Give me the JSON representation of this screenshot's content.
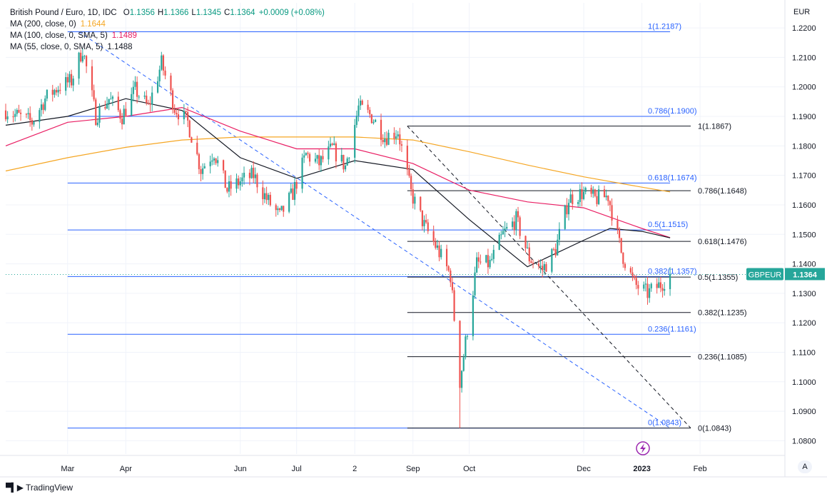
{
  "legend": {
    "title": "British Pound / Euro, 1D, IDC",
    "ohlc": [
      {
        "k": "O",
        "v": "1.1356"
      },
      {
        "k": "H",
        "v": "1.1366"
      },
      {
        "k": "L",
        "v": "1.1345"
      },
      {
        "k": "C",
        "v": "1.1364"
      }
    ],
    "change": "+0.0009 (+0.08%)",
    "change_color": "#089981",
    "ma_lines": [
      {
        "label": "MA (200, close, 0)",
        "value": "1.1644",
        "color": "#f5a623"
      },
      {
        "label": "MA (100, close, 0, SMA, 5)",
        "value": "1.1489",
        "color": "#e91e63"
      },
      {
        "label": "MA (55, close, 0, SMA, 5)",
        "value": "1.1488",
        "color": "#131722"
      }
    ]
  },
  "axis_unit": "EUR",
  "auto_label": "A",
  "footer_brand": "TradingView",
  "chart_data": {
    "type": "candlestick",
    "symbol": "GBPEUR",
    "last_price": "1.1364",
    "last_price_value": 1.1364,
    "up_color": "#26a69a",
    "down_color": "#ef5350",
    "ylim": [
      1.0755,
      1.2285
    ],
    "y_ticks": [
      "1.2200",
      "1.2100",
      "1.2000",
      "1.1900",
      "1.1800",
      "1.1700",
      "1.1600",
      "1.1500",
      "1.1400",
      "1.1300",
      "1.1200",
      "1.1100",
      "1.1000",
      "1.0900",
      "1.0800"
    ],
    "x_ticks": [
      {
        "label": "Mar",
        "date": "2022-03-01"
      },
      {
        "label": "Apr",
        "date": "2022-04-01"
      },
      {
        "label": "Jun",
        "date": "2022-06-01"
      },
      {
        "label": "Jul",
        "date": "2022-07-01"
      },
      {
        "label": "2",
        "date": "2022-08-01"
      },
      {
        "label": "Sep",
        "date": "2022-09-01"
      },
      {
        "label": "Oct",
        "date": "2022-10-01"
      },
      {
        "label": "Dec",
        "date": "2022-12-01"
      },
      {
        "label": "2023",
        "date": "2023-01-01"
      },
      {
        "label": "Feb",
        "date": "2023-02-01"
      }
    ],
    "price_path": [
      [
        "2022-01-27",
        1.192
      ],
      [
        "2022-02-03",
        1.19
      ],
      [
        "2022-02-10",
        1.188
      ],
      [
        "2022-02-17",
        1.196
      ],
      [
        "2022-02-24",
        1.2
      ],
      [
        "2022-03-03",
        1.202
      ],
      [
        "2022-03-09",
        1.213
      ],
      [
        "2022-03-16",
        1.19
      ],
      [
        "2022-03-23",
        1.196
      ],
      [
        "2022-03-30",
        1.19
      ],
      [
        "2022-04-06",
        1.199
      ],
      [
        "2022-04-13",
        1.193
      ],
      [
        "2022-04-20",
        1.208
      ],
      [
        "2022-04-27",
        1.193
      ],
      [
        "2022-05-04",
        1.188
      ],
      [
        "2022-05-11",
        1.172
      ],
      [
        "2022-05-18",
        1.178
      ],
      [
        "2022-05-25",
        1.165
      ],
      [
        "2022-06-01",
        1.168
      ],
      [
        "2022-06-08",
        1.17
      ],
      [
        "2022-06-15",
        1.162
      ],
      [
        "2022-06-22",
        1.156
      ],
      [
        "2022-06-29",
        1.164
      ],
      [
        "2022-07-06",
        1.177
      ],
      [
        "2022-07-13",
        1.174
      ],
      [
        "2022-07-20",
        1.179
      ],
      [
        "2022-07-27",
        1.173
      ],
      [
        "2022-08-03",
        1.193
      ],
      [
        "2022-08-10",
        1.19
      ],
      [
        "2022-08-17",
        1.183
      ],
      [
        "2022-08-24",
        1.185
      ],
      [
        "2022-08-31",
        1.164
      ],
      [
        "2022-09-07",
        1.153
      ],
      [
        "2022-09-14",
        1.145
      ],
      [
        "2022-09-21",
        1.136
      ],
      [
        "2022-09-26",
        1.1
      ],
      [
        "2022-10-05",
        1.14
      ],
      [
        "2022-10-12",
        1.14
      ],
      [
        "2022-10-19",
        1.15
      ],
      [
        "2022-10-26",
        1.155
      ],
      [
        "2022-11-02",
        1.142
      ],
      [
        "2022-11-09",
        1.138
      ],
      [
        "2022-11-16",
        1.145
      ],
      [
        "2022-11-23",
        1.162
      ],
      [
        "2022-11-30",
        1.164
      ],
      [
        "2022-12-07",
        1.162
      ],
      [
        "2022-12-14",
        1.163
      ],
      [
        "2022-12-21",
        1.144
      ],
      [
        "2022-12-28",
        1.133
      ],
      [
        "2023-01-04",
        1.13
      ],
      [
        "2023-01-11",
        1.133
      ],
      [
        "2023-01-16",
        1.1364
      ]
    ],
    "spike_low": {
      "date": "2022-09-26",
      "low": 1.0843
    },
    "ma_series": [
      {
        "name": "MA (200)",
        "color": "#f5a623",
        "points": [
          [
            "2022-01-27",
            1.1715
          ],
          [
            "2022-03-01",
            1.176
          ],
          [
            "2022-04-01",
            1.1795
          ],
          [
            "2022-05-01",
            1.182
          ],
          [
            "2022-06-01",
            1.183
          ],
          [
            "2022-07-01",
            1.183
          ],
          [
            "2022-08-01",
            1.183
          ],
          [
            "2022-09-01",
            1.182
          ],
          [
            "2022-10-01",
            1.178
          ],
          [
            "2022-11-01",
            1.1735
          ],
          [
            "2022-12-01",
            1.1695
          ],
          [
            "2023-01-01",
            1.166
          ],
          [
            "2023-01-16",
            1.1644
          ]
        ]
      },
      {
        "name": "MA (100)",
        "color": "#e91e63",
        "points": [
          [
            "2022-01-27",
            1.18
          ],
          [
            "2022-03-01",
            1.188
          ],
          [
            "2022-04-01",
            1.19
          ],
          [
            "2022-05-01",
            1.193
          ],
          [
            "2022-06-01",
            1.185
          ],
          [
            "2022-07-01",
            1.179
          ],
          [
            "2022-08-01",
            1.179
          ],
          [
            "2022-09-01",
            1.174
          ],
          [
            "2022-10-01",
            1.165
          ],
          [
            "2022-11-01",
            1.161
          ],
          [
            "2022-12-01",
            1.159
          ],
          [
            "2023-01-01",
            1.152
          ],
          [
            "2023-01-16",
            1.1489
          ]
        ]
      },
      {
        "name": "MA (55)",
        "color": "#131722",
        "points": [
          [
            "2022-01-27",
            1.187
          ],
          [
            "2022-03-01",
            1.19
          ],
          [
            "2022-04-01",
            1.196
          ],
          [
            "2022-05-01",
            1.192
          ],
          [
            "2022-06-01",
            1.176
          ],
          [
            "2022-07-01",
            1.169
          ],
          [
            "2022-08-01",
            1.175
          ],
          [
            "2022-09-01",
            1.172
          ],
          [
            "2022-10-01",
            1.155
          ],
          [
            "2022-11-01",
            1.139
          ],
          [
            "2022-12-01",
            1.148
          ],
          [
            "2022-12-15",
            1.152
          ],
          [
            "2023-01-01",
            1.151
          ],
          [
            "2023-01-16",
            1.1488
          ]
        ]
      }
    ],
    "fib_blue": {
      "color": "#2962ff",
      "start": "2022-03-01",
      "end": "2023-01-16",
      "levels": [
        {
          "label": "1(1.2187)",
          "value": 1.2187
        },
        {
          "label": "0.786(1.1900)",
          "value": 1.19
        },
        {
          "label": "0.618(1.1674)",
          "value": 1.1674
        },
        {
          "label": "0.5(1.1515)",
          "value": 1.1515
        },
        {
          "label": "0.382(1.1357)",
          "value": 1.1357
        },
        {
          "label": "0.236(1.1161)",
          "value": 1.1161
        },
        {
          "label": "0(1.0843)",
          "value": 1.0843
        }
      ],
      "trend_from": [
        "2022-03-07",
        1.2187
      ],
      "trend_to": [
        "2023-01-16",
        1.0843
      ]
    },
    "fib_black": {
      "color": "#131722",
      "start": "2022-08-29",
      "end": "2023-01-27",
      "levels": [
        {
          "label": "1(1.1867)",
          "value": 1.1867
        },
        {
          "label": "0.786(1.1648)",
          "value": 1.1648
        },
        {
          "label": "0.618(1.1476)",
          "value": 1.1476
        },
        {
          "label": "0.5(1.1355)",
          "value": 1.1355
        },
        {
          "label": "0.382(1.1235)",
          "value": 1.1235
        },
        {
          "label": "0.236(1.1085)",
          "value": 1.1085
        },
        {
          "label": "0(1.0843)",
          "value": 1.0843
        }
      ],
      "trend_from": [
        "2022-08-29",
        1.1867
      ],
      "trend_to": [
        "2023-01-27",
        1.0843
      ]
    }
  }
}
